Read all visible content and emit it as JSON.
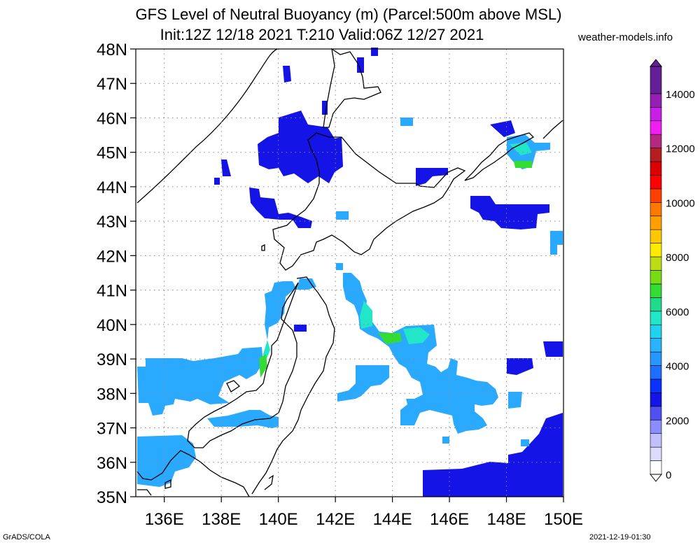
{
  "header": {
    "title_line1": "GFS Level of Neutral Buoyancy (m) (Parcel:500m above MSL)",
    "title_line2": "Init:12Z 12/18 2021 T:210 Valid:06Z 12/27 2021",
    "site": "weather-models.info"
  },
  "footer": {
    "left": "GrADS/COLA",
    "right": "2021-12-19-01:30"
  },
  "map": {
    "lat_labels": [
      "48N",
      "47N",
      "46N",
      "45N",
      "44N",
      "43N",
      "42N",
      "41N",
      "40N",
      "39N",
      "38N",
      "37N",
      "36N",
      "35N"
    ],
    "lon_labels": [
      "136E",
      "138E",
      "140E",
      "142E",
      "144E",
      "146E",
      "148E",
      "150E"
    ],
    "lat_range": [
      35,
      48
    ],
    "lon_range": [
      135,
      150
    ],
    "grid": "dotted"
  },
  "colorbar": {
    "labels": [
      "0",
      "2000",
      "4000",
      "6000",
      "8000",
      "10000",
      "12000",
      "14000"
    ],
    "colors": [
      "#ffffff",
      "#dcdcff",
      "#c0c0ff",
      "#8c8cff",
      "#5050f0",
      "#1414e6",
      "#0a32ff",
      "#1e6eff",
      "#2896ff",
      "#2ab4ff",
      "#1ed2f0",
      "#22e6c8",
      "#1edc8c",
      "#32dc32",
      "#78dc14",
      "#bedc14",
      "#ffeb00",
      "#ffc800",
      "#ffa000",
      "#ff7800",
      "#ff4000",
      "#ff0000",
      "#dc0000",
      "#b41e1e",
      "#b4287f",
      "#f01ef0",
      "#c81ee6",
      "#961eb4",
      "#641e96"
    ],
    "levels": [
      0,
      500,
      1000,
      1500,
      2000,
      2500,
      3000,
      3500,
      4000,
      4500,
      5000,
      5500,
      6000,
      6500,
      7000,
      7500,
      8000,
      8500,
      9000,
      9500,
      10000,
      10500,
      11000,
      11500,
      12000,
      12500,
      13000,
      13500,
      14000,
      15000
    ]
  }
}
